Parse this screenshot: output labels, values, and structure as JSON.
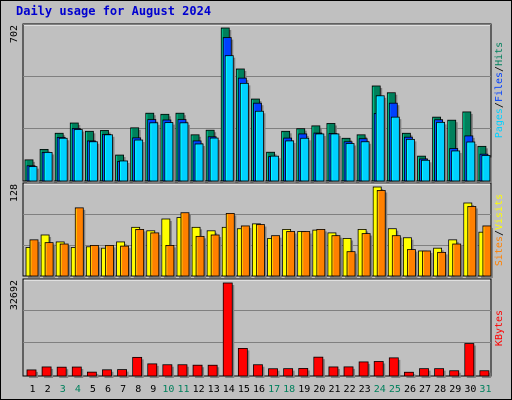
{
  "chart_data": [
    {
      "type": "bar",
      "title": "Daily usage for August 2024",
      "x": [
        1,
        2,
        3,
        4,
        5,
        6,
        7,
        8,
        9,
        10,
        11,
        12,
        13,
        14,
        15,
        16,
        17,
        18,
        19,
        20,
        21,
        22,
        23,
        24,
        25,
        26,
        27,
        28,
        29,
        30,
        31
      ],
      "weekend_days": [
        3,
        4,
        10,
        11,
        17,
        18,
        24,
        25,
        31
      ],
      "ymax_label": "702",
      "ylim": [
        0,
        702
      ],
      "series": [
        {
          "name": "Hits",
          "color": "#00805c",
          "values": [
            97,
            145,
            219,
            266,
            228,
            232,
            119,
            244,
            311,
            306,
            311,
            212,
            233,
            702,
            514,
            376,
            132,
            228,
            240,
            253,
            264,
            196,
            212,
            436,
            405,
            219,
            114,
            293,
            279,
            317,
            159
          ]
        },
        {
          "name": "Files",
          "color": "#0040ff",
          "values": [
            70,
            131,
            200,
            241,
            184,
            214,
            90,
            198,
            282,
            280,
            282,
            184,
            203,
            658,
            472,
            357,
            112,
            197,
            216,
            220,
            218,
            180,
            194,
            310,
            357,
            201,
            101,
            281,
            149,
            207,
            123
          ]
        },
        {
          "name": "Pages",
          "color": "#00d0ff",
          "values": [
            66,
            131,
            196,
            236,
            180,
            212,
            92,
            188,
            267,
            268,
            267,
            170,
            197,
            575,
            448,
            320,
            114,
            184,
            196,
            216,
            216,
            172,
            180,
            391,
            293,
            191,
            95,
            269,
            138,
            179,
            117
          ]
        }
      ]
    },
    {
      "type": "bar",
      "ymax_label": "128",
      "ylim": [
        0,
        128
      ],
      "series": [
        {
          "name": "Visits",
          "color": "#ffff00",
          "values": [
            41,
            59,
            49,
            41,
            42,
            40,
            49,
            70,
            65,
            82,
            84,
            70,
            65,
            70,
            68,
            75,
            54,
            67,
            64,
            66,
            62,
            54,
            67,
            128,
            68,
            55,
            36,
            40,
            52,
            105,
            63
          ]
        },
        {
          "name": "Sites",
          "color": "#ff8000",
          "values": [
            52,
            48,
            46,
            98,
            44,
            44,
            43,
            67,
            62,
            44,
            91,
            57,
            59,
            90,
            72,
            74,
            58,
            64,
            64,
            67,
            58,
            35,
            61,
            123,
            58,
            38,
            36,
            34,
            46,
            100,
            72
          ]
        }
      ]
    },
    {
      "type": "bar",
      "ymax_label": "32692",
      "ylim": [
        0,
        32692
      ],
      "series": [
        {
          "name": "KBytes",
          "color": "#ff0000",
          "values": [
            2138,
            3183,
            3101,
            3147,
            1358,
            2180,
            2256,
            6550,
            4264,
            3960,
            3960,
            3797,
            3785,
            32692,
            9697,
            3960,
            2553,
            2584,
            2651,
            6622,
            3184,
            3205,
            4951,
            5102,
            6378,
            1319,
            2584,
            2584,
            1851,
            11408,
            1851
          ]
        }
      ]
    }
  ],
  "legend": {
    "pages": "Pages",
    "files": "Files",
    "hits": "Hits",
    "sites": "Sites",
    "visits": "Visits",
    "kbytes": "KBytes",
    "sep": "/"
  }
}
